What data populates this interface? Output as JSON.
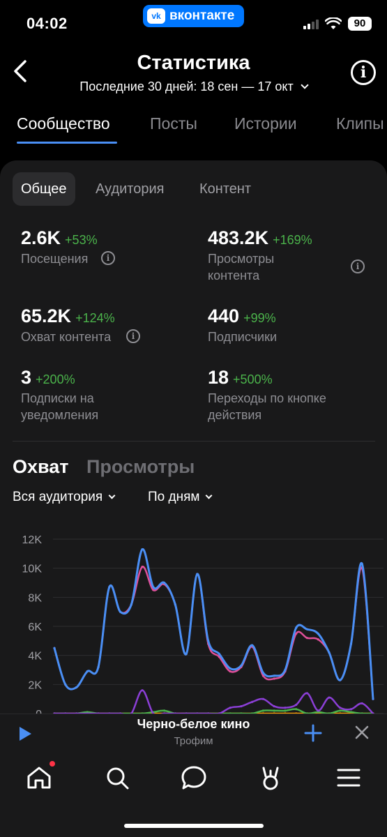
{
  "status": {
    "time": "04:02",
    "app_pill": "вконтакте",
    "vk_logo": "vk",
    "battery": "90"
  },
  "header": {
    "title": "Статистика",
    "period": "Последние 30 дней: 18 сен — 17 окт"
  },
  "tabs": [
    {
      "label": "Сообщество",
      "active": true
    },
    {
      "label": "Посты",
      "active": false
    },
    {
      "label": "Истории",
      "active": false
    },
    {
      "label": "Клипы",
      "active": false
    }
  ],
  "segments": [
    {
      "label": "Общее",
      "active": true
    },
    {
      "label": "Аудитория",
      "active": false
    },
    {
      "label": "Контент",
      "active": false
    }
  ],
  "stats": [
    {
      "value": "2.6K",
      "delta": "+53%",
      "label": "Посещения",
      "info": true
    },
    {
      "value": "483.2K",
      "delta": "+169%",
      "label": "Просмотры контента",
      "info": true
    },
    {
      "value": "65.2K",
      "delta": "+124%",
      "label": "Охват контента",
      "info": true
    },
    {
      "value": "440",
      "delta": "+99%",
      "label": "Подписчики",
      "info": false
    },
    {
      "value": "3",
      "delta": "+200%",
      "label": "Подписки на уведомления",
      "info": false
    },
    {
      "value": "18",
      "delta": "+500%",
      "label": "Переходы по кнопке действия",
      "info": false
    }
  ],
  "chart_section": {
    "tab_active": "Охват",
    "tab_inactive": "Просмотры",
    "filter_audience": "Вся аудитория",
    "filter_period": "По дням"
  },
  "chart_data": {
    "type": "line",
    "title": "",
    "xlabel": "",
    "ylabel": "",
    "ylim": [
      0,
      12000
    ],
    "yticks": [
      "12K",
      "10K",
      "8K",
      "6K",
      "4K",
      "2K",
      "0"
    ],
    "grid": true,
    "legend": "none",
    "x": [
      1,
      2,
      3,
      4,
      5,
      6,
      7,
      8,
      9,
      10,
      11,
      12,
      13,
      14,
      15,
      16,
      17,
      18,
      19,
      20,
      21,
      22,
      23,
      24,
      25,
      26,
      27,
      28,
      29,
      30
    ],
    "series": [
      {
        "color": "#4a8ff5",
        "values": [
          4500,
          2000,
          1800,
          2900,
          3200,
          8700,
          7000,
          7500,
          11300,
          8700,
          9000,
          7500,
          4100,
          9600,
          5000,
          4100,
          3100,
          3300,
          4700,
          2800,
          2600,
          3000,
          5900,
          5800,
          5500,
          4200,
          2300,
          4800,
          10300,
          1000
        ]
      },
      {
        "color": "#e0509a",
        "values": [
          4500,
          2000,
          1800,
          2900,
          3200,
          8700,
          7000,
          7500,
          10100,
          8500,
          8900,
          7500,
          4100,
          9600,
          4800,
          3900,
          2900,
          3200,
          4600,
          2600,
          2400,
          2900,
          5500,
          5200,
          5100,
          4200,
          2300,
          4800,
          10000,
          1000
        ]
      },
      {
        "color": "#8b3fd6",
        "values": [
          0,
          0,
          0,
          0,
          0,
          0,
          0,
          0,
          1600,
          0,
          0,
          0,
          0,
          0,
          0,
          0,
          400,
          500,
          800,
          1000,
          500,
          400,
          600,
          1400,
          200,
          1100,
          400,
          300,
          700,
          0
        ]
      },
      {
        "color": "#4bb34b",
        "values": [
          0,
          0,
          0,
          100,
          0,
          0,
          0,
          0,
          0,
          100,
          200,
          0,
          0,
          0,
          0,
          0,
          0,
          0,
          0,
          200,
          200,
          200,
          300,
          0,
          100,
          0,
          200,
          100,
          0,
          0
        ]
      },
      {
        "color": "#ffa000",
        "values": [
          0,
          0,
          0,
          0,
          0,
          0,
          0,
          0,
          0,
          0,
          0,
          0,
          0,
          0,
          0,
          0,
          0,
          0,
          0,
          0,
          0,
          0,
          0,
          0,
          0,
          0,
          0,
          0,
          0,
          0
        ]
      }
    ]
  },
  "player": {
    "title": "Черно-белое кино",
    "artist": "Трофим"
  },
  "nav": {
    "icons": [
      "home-icon",
      "search-icon",
      "messages-icon",
      "services-icon",
      "menu-icon"
    ]
  },
  "colors": {
    "accent": "#4a8ff5",
    "positive": "#4bb34b",
    "background": "#000000",
    "card": "#19191a",
    "vk_blue": "#0077ff"
  }
}
